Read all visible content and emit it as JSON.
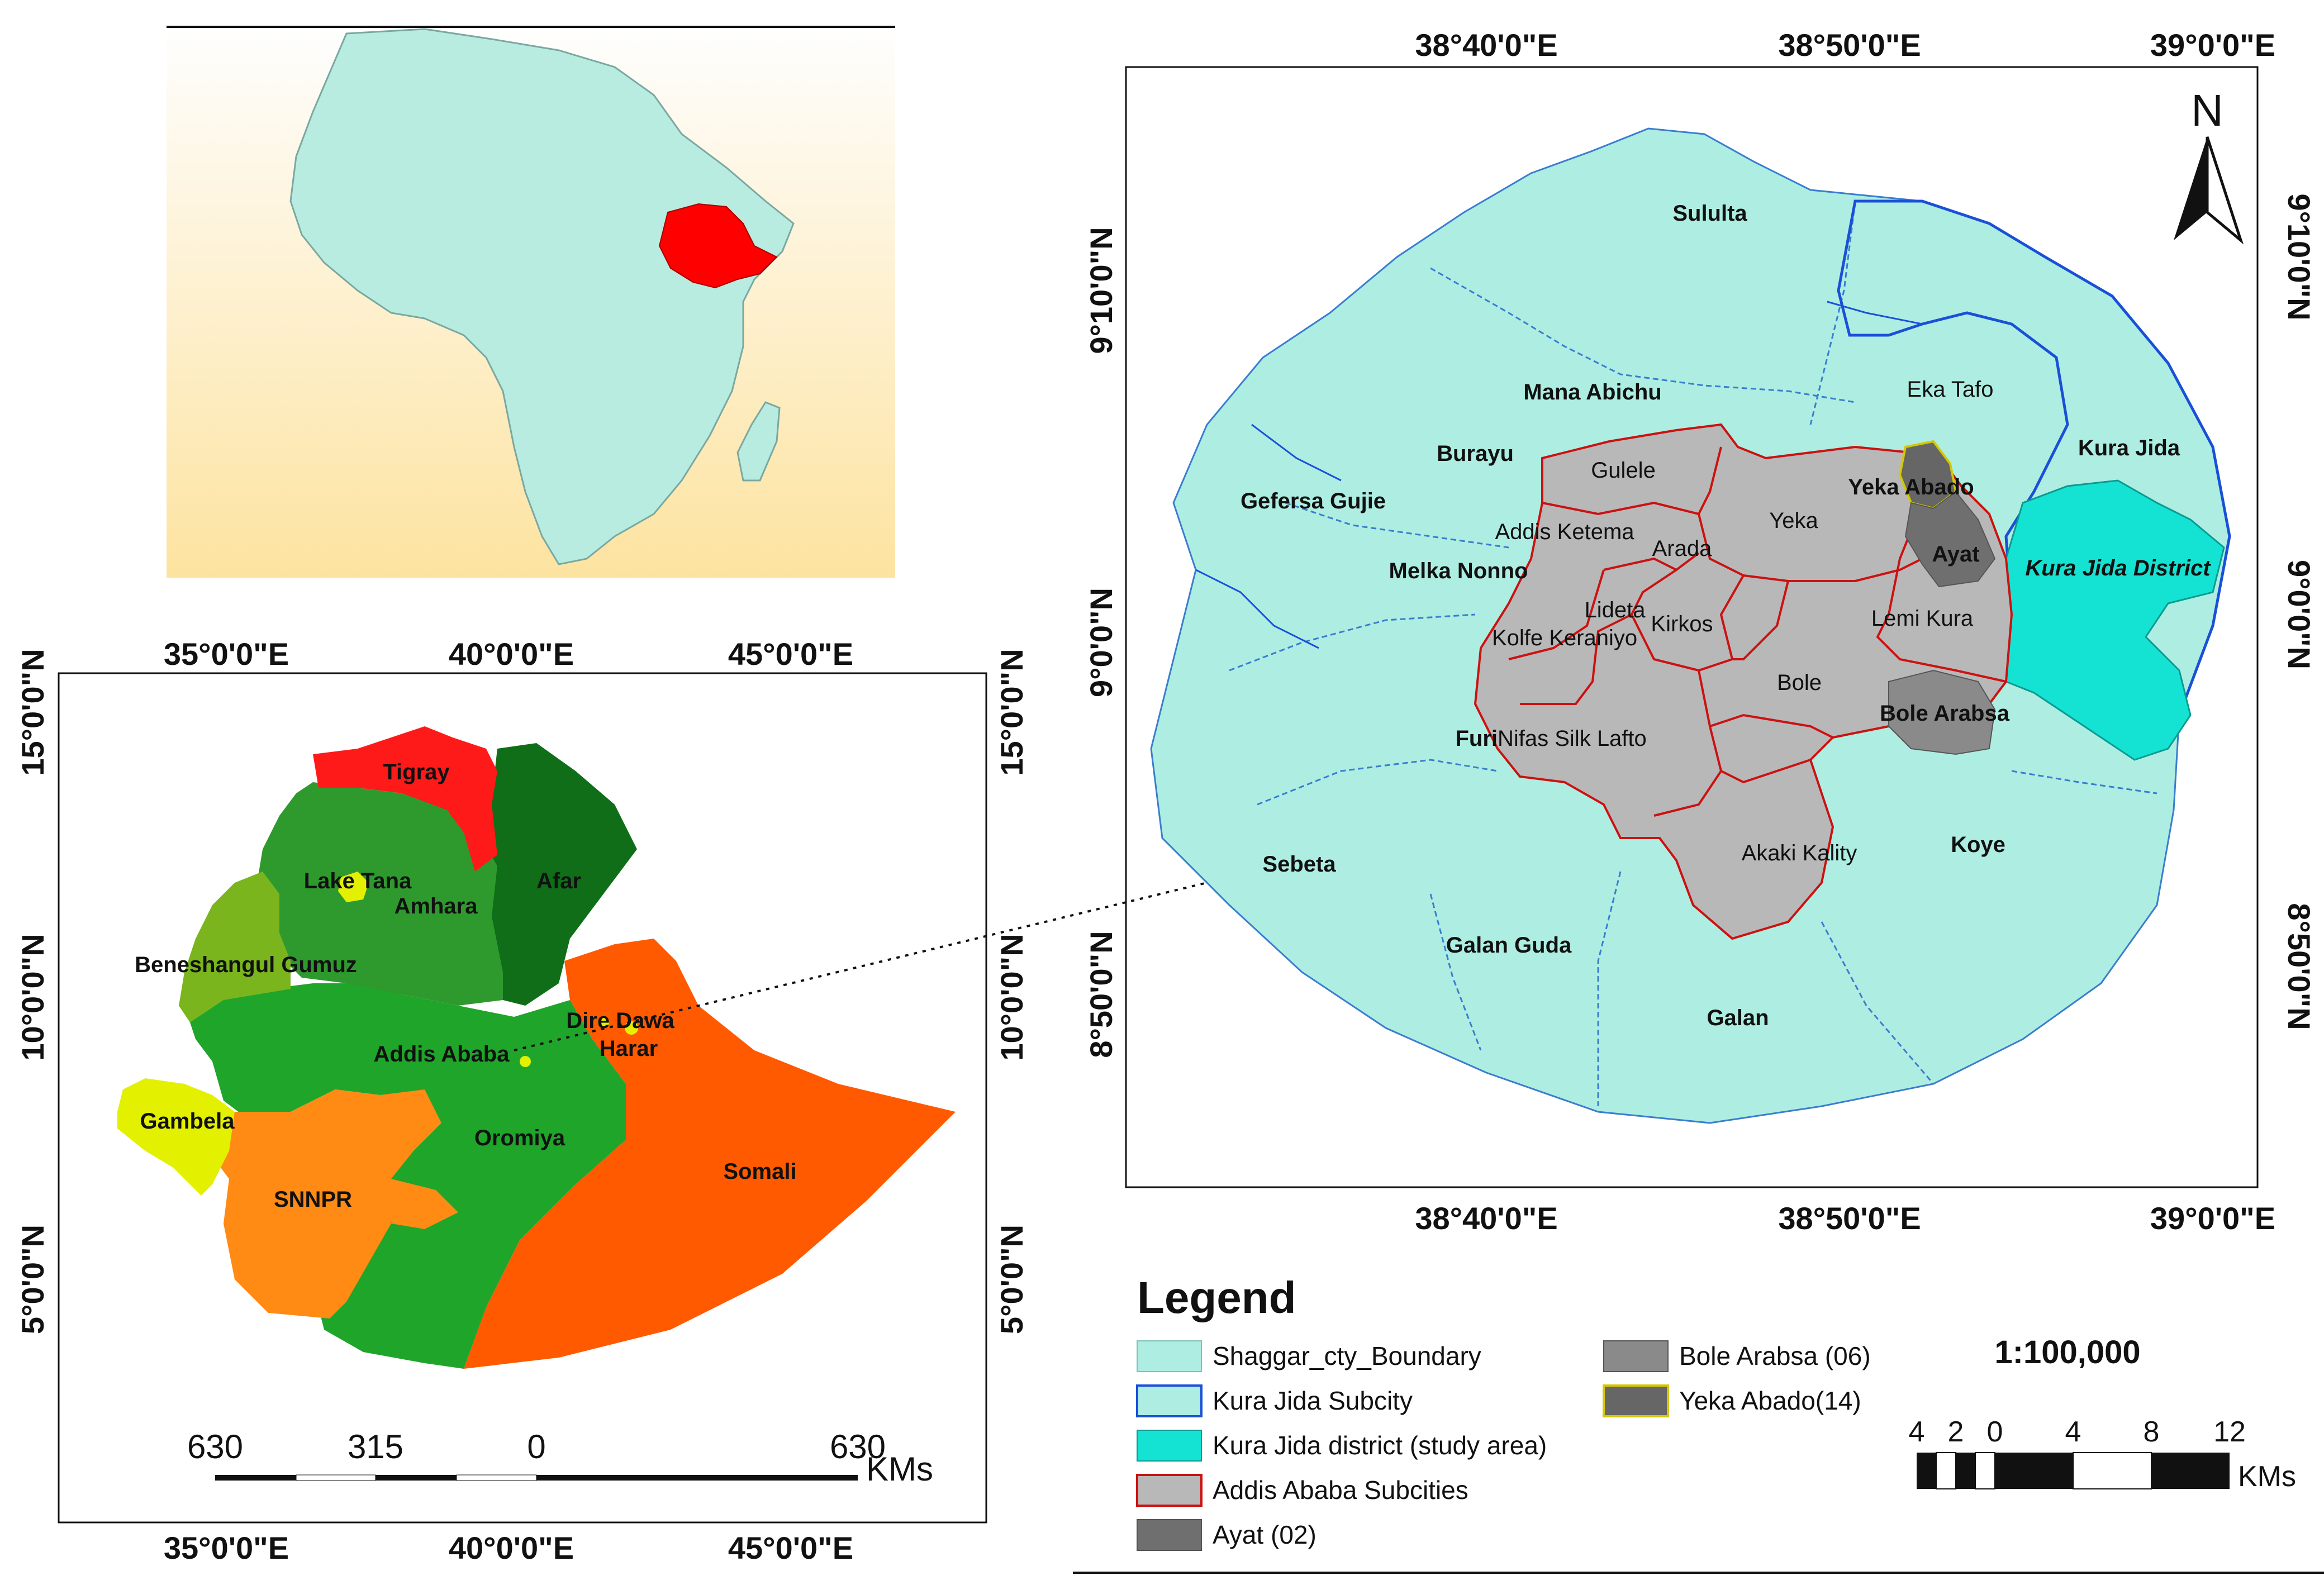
{
  "colors": {
    "shaggar": "#aeeee2",
    "kura_jida_district": "#14e3d3",
    "addis_subcities": "#b8b8b8",
    "ayat": "#6f6f6f",
    "bole_arabsa": "#8a8a8a",
    "yeka_abado": "#666666",
    "africa_land": "#b9ece0",
    "ethiopia_highlight": "#ff0000",
    "inset_bg_top": "#fefefe",
    "inset_bg_bottom": "#fde3a0",
    "tigray": "#ff1a1a",
    "amhara": "#2e9a2e",
    "afar": "#0f6e17",
    "oromiya": "#1fa52a",
    "benishangul": "#7ab51d",
    "gambela": "#e3f000",
    "snnpr": "#ff8a14",
    "somali": "#ff5a00",
    "subcity_border": "#cc1111",
    "river": "#1a50d8"
  },
  "ethiopia_map": {
    "top_labels": [
      "35°0'0\"E",
      "40°0'0\"E",
      "45°0'0\"E"
    ],
    "bottom_labels": [
      "35°0'0\"E",
      "40°0'0\"E",
      "45°0'0\"E"
    ],
    "left_labels": [
      "15°0'0\"N",
      "10°0'0\"N",
      "5°0'0\"N"
    ],
    "right_labels": [
      "15°0'0\"N",
      "10°0'0\"N",
      "5°0'0\"N"
    ],
    "regions": {
      "tigray": "Tigray",
      "afar": "Afar",
      "lake_tana": "Lake Tana",
      "amhara": "Amhara",
      "benishangul": "Beneshangul Gumuz",
      "dire_dawa": "Dire Dawa",
      "harar": "Harar",
      "addis": "Addis Ababa",
      "gambela": "Gambela",
      "oromiya": "Oromiya",
      "somali": "Somali",
      "snnpr": "SNNPR"
    },
    "scale": {
      "labels": [
        "630",
        "315",
        "0",
        "630"
      ],
      "unit": "KMs"
    }
  },
  "main_map": {
    "top_labels": [
      "38°40'0\"E",
      "38°50'0\"E",
      "39°0'0\"E"
    ],
    "bottom_labels": [
      "38°40'0\"E",
      "38°50'0\"E",
      "39°0'0\"E"
    ],
    "left_labels": [
      "9°10'0\"N",
      "9°0'0\"N",
      "8°50'0\"N"
    ],
    "right_labels": [
      "9°10'0\"N",
      "9°0'0\"N",
      "8°50'0\"N"
    ],
    "north": "N",
    "labels": {
      "sululta": "Sululta",
      "mana_abichu": "Mana Abichu",
      "eka_tafo": "Eka Tafo",
      "kura_jida": "Kura Jida",
      "burayu": "Burayu",
      "gefersa_gujie": "Gefersa Gujie",
      "gulele": "Gulele",
      "yeka_abado": "Yeka Abado",
      "addis_ketema": "Addis Ketema",
      "yeka": "Yeka",
      "arada": "Arada",
      "ayat": "Ayat",
      "kura_jida_district": "Kura Jida District",
      "melka_nonno": "Melka Nonno",
      "lideta": "Lideta",
      "kirkos": "Kirkos",
      "lemi_kura": "Lemi Kura",
      "kolfe": "Kolfe Keraniyo",
      "bole": "Bole",
      "bole_arabsa": "Bole Arabsa",
      "furi": "Furi",
      "nifas_silk": "Nifas Silk Lafto",
      "akaki_kality": "Akaki Kality",
      "koye": "Koye",
      "sebeta": "Sebeta",
      "galan_guda": "Galan Guda",
      "galan": "Galan"
    }
  },
  "legend": {
    "title": "Legend",
    "items": [
      "Shaggar_cty_Boundary",
      "Kura Jida Subcity",
      "Kura Jida district (study area)",
      "Addis Ababa Subcities",
      "Ayat (02)",
      "Bole Arabsa (06)",
      "Yeka Abado(14)"
    ],
    "scale_ratio": "1:100,000",
    "scale_labels": [
      "4",
      "2",
      "0",
      "4",
      "8",
      "12"
    ],
    "scale_unit": "KMs"
  }
}
